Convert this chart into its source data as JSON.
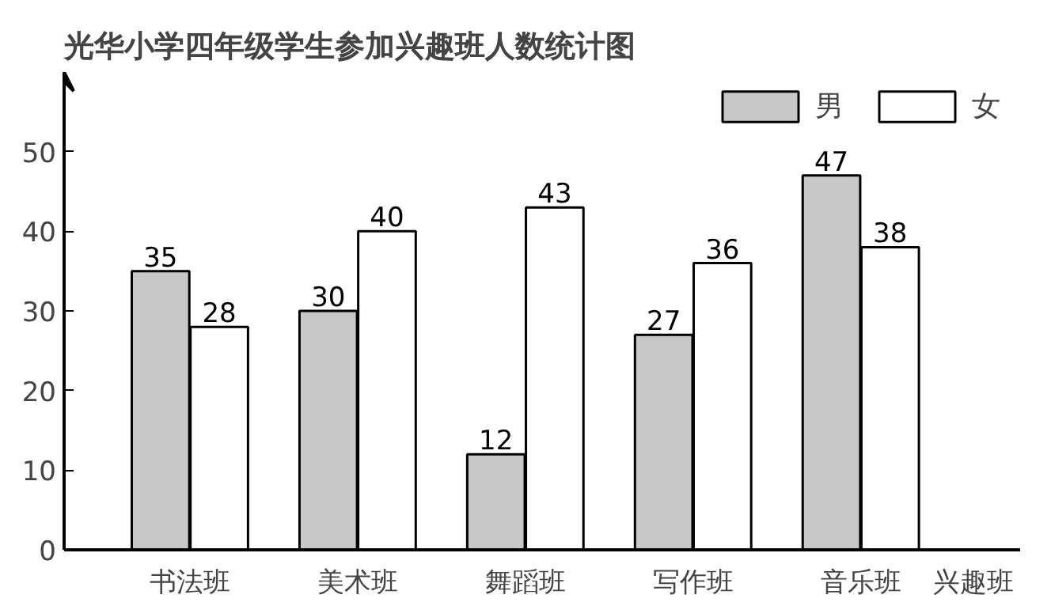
{
  "chart_data": {
    "type": "bar",
    "title": "光华小学四年级学生参加兴趣班人数统计图",
    "xlabel": "兴趣班",
    "categories": [
      "书法班",
      "美术班",
      "舞蹈班",
      "写作班",
      "音乐班"
    ],
    "series": [
      {
        "name": "男",
        "color": "#c8c8c8",
        "values": [
          35,
          30,
          12,
          27,
          47
        ]
      },
      {
        "name": "女",
        "color": "#ffffff",
        "values": [
          28,
          40,
          43,
          36,
          38
        ]
      }
    ],
    "ylim": [
      0,
      60
    ],
    "yticks": [
      0,
      10,
      20,
      30,
      40,
      50
    ],
    "grid": false,
    "legend": "top right",
    "data_labels": true
  }
}
